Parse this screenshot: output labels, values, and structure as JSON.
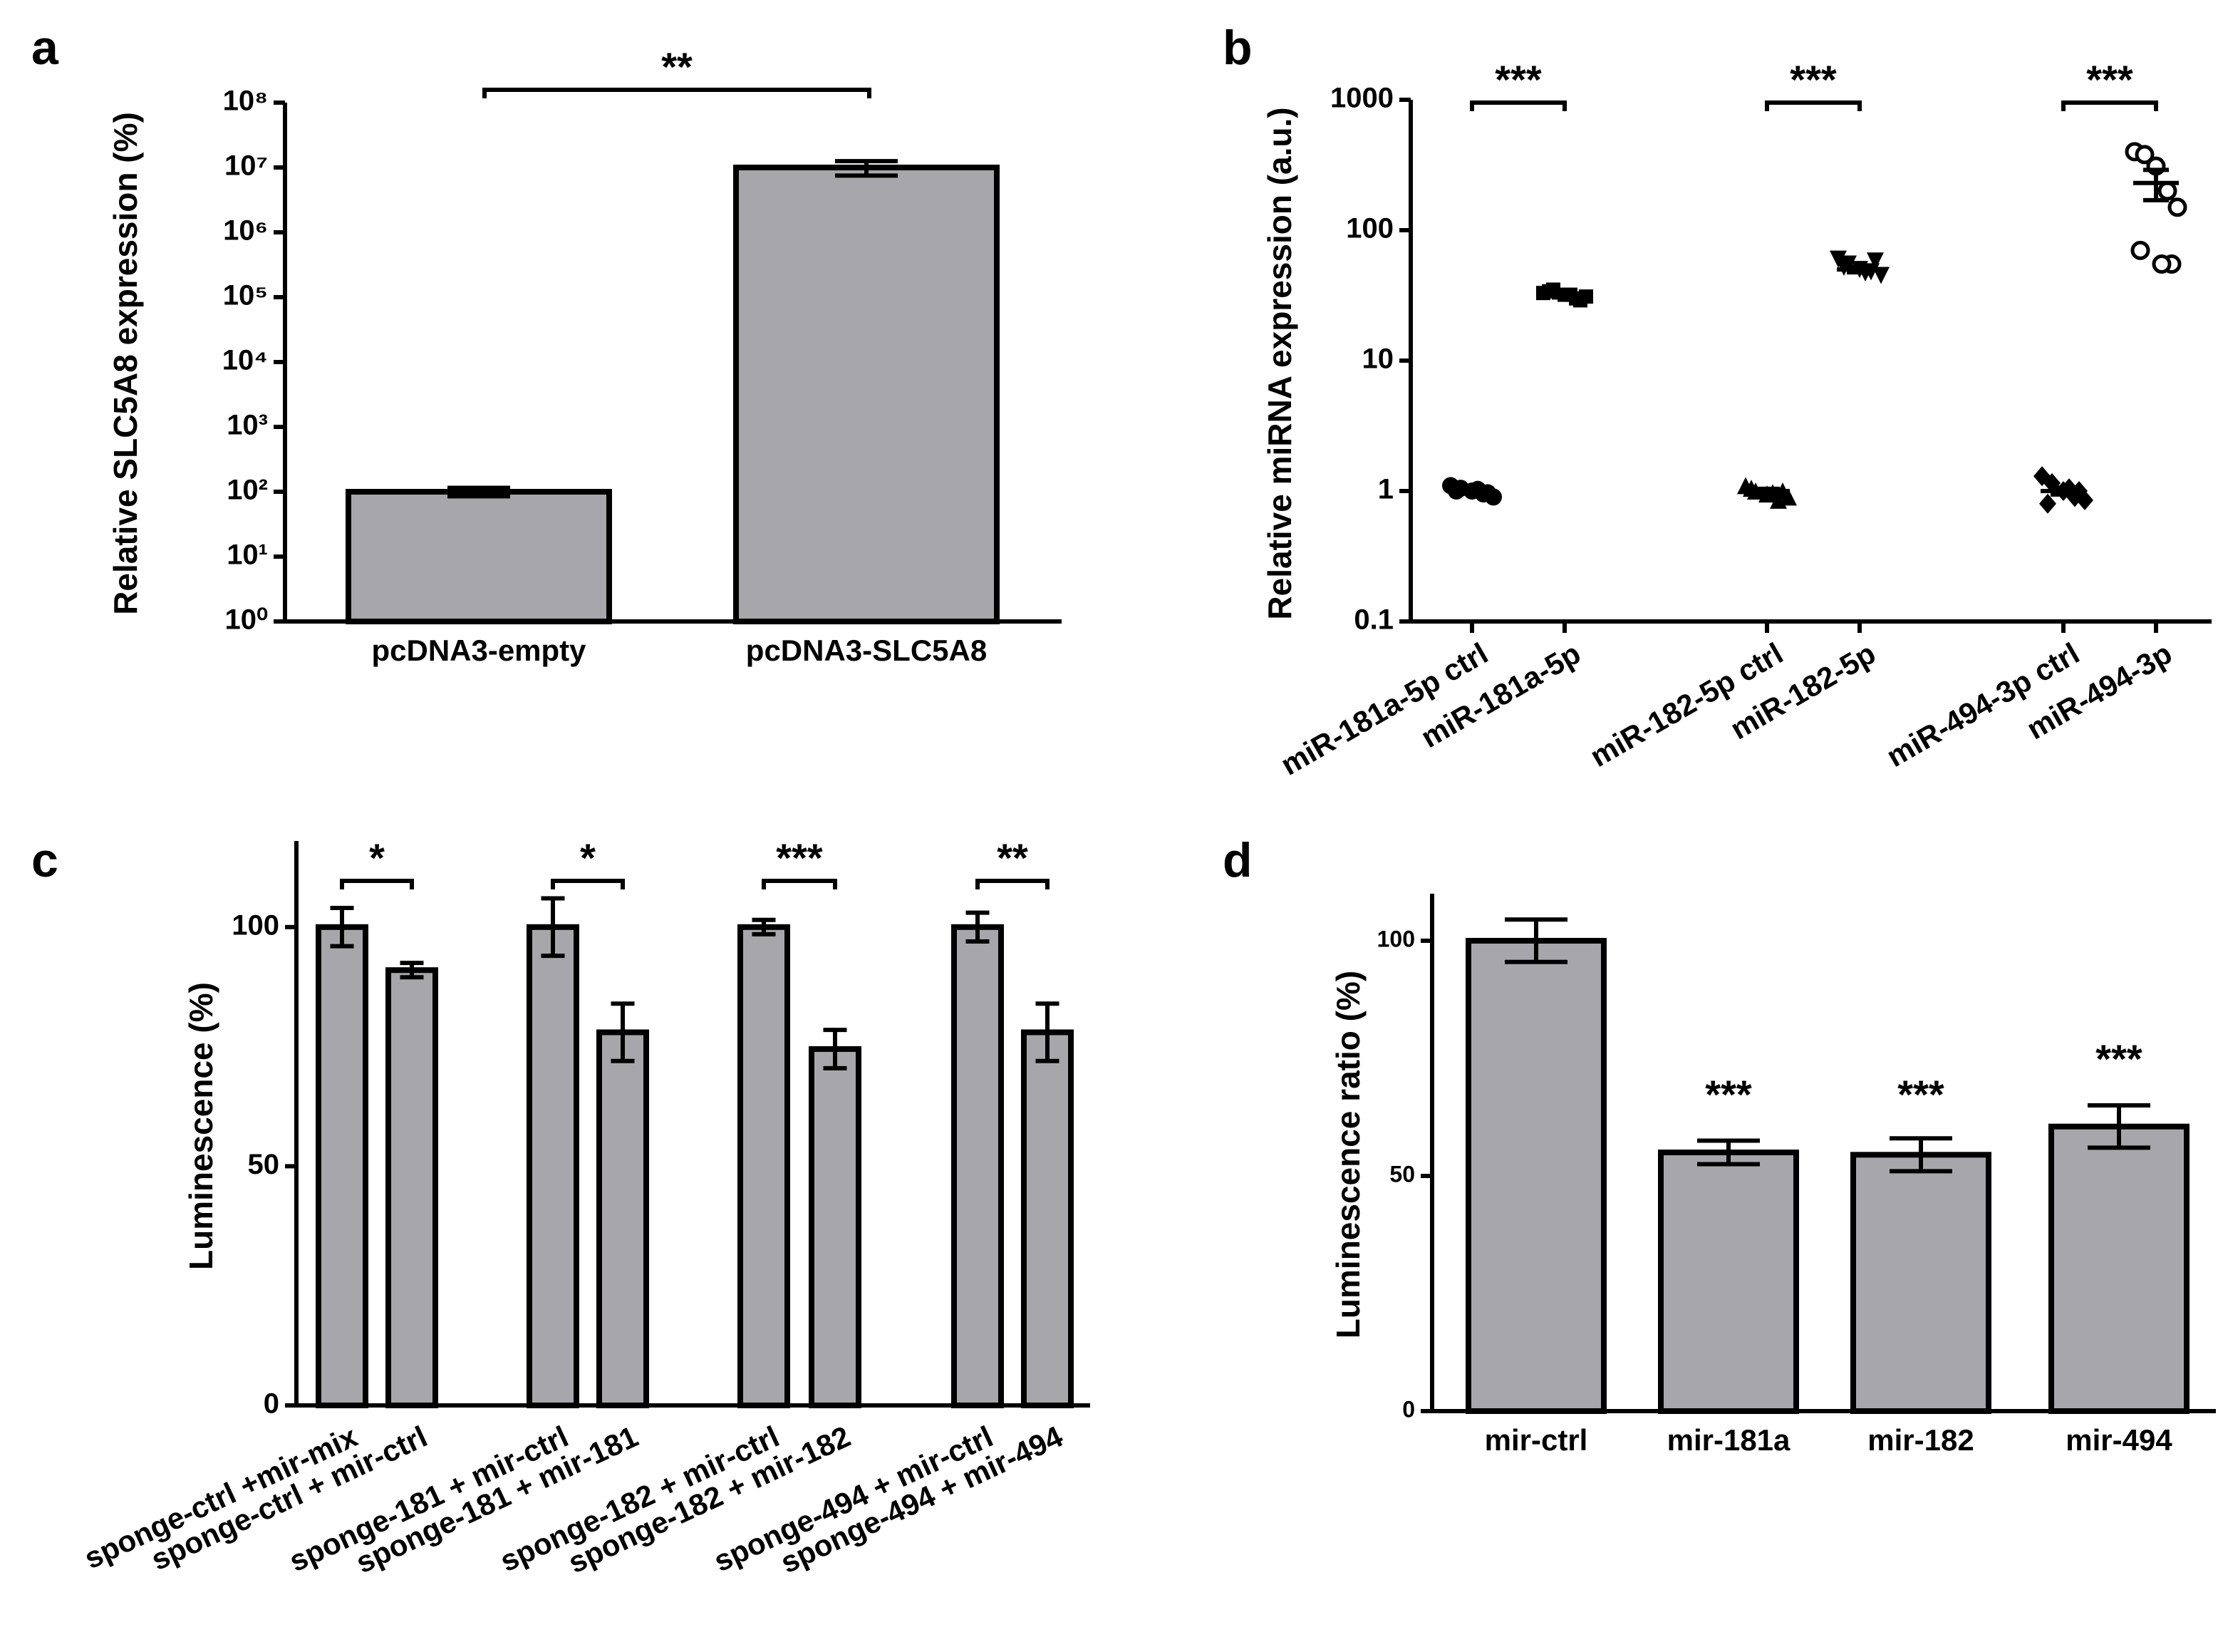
{
  "chart_data": [
    {
      "type": "bar",
      "panel_label": "a",
      "y_label": "Relative SLC5A8 expression (%)",
      "categories": [
        "pcDNA3-empty",
        "pcDNA3-SLC5A8"
      ],
      "values": [
        100,
        10000000
      ],
      "errors": [
        15,
        2500000
      ],
      "color": "#a7a7ab",
      "log_scale": true,
      "ylim": [
        1,
        100000000
      ],
      "yticks": [
        {
          "value": 1,
          "label": "10⁰"
        },
        {
          "value": 10,
          "label": "10¹"
        },
        {
          "value": 100,
          "label": "10²"
        },
        {
          "value": 1000,
          "label": "10³"
        },
        {
          "value": 10000,
          "label": "10⁴"
        },
        {
          "value": 100000,
          "label": "10⁵"
        },
        {
          "value": 1000000,
          "label": "10⁶"
        },
        {
          "value": 10000000,
          "label": "10⁷"
        },
        {
          "value": 100000000,
          "label": "10⁸"
        }
      ],
      "annotations": [
        "**"
      ]
    },
    {
      "type": "dot",
      "panel_label": "b",
      "y_label": "Relative miRNA expression (a.u.)",
      "log_scale": true,
      "ylim": [
        0.1,
        1000
      ],
      "yticks": [
        0.1,
        1,
        10,
        100,
        1000
      ],
      "groups": [
        {
          "name": "miR-181a-5p ctrl",
          "marker": "circle",
          "values": [
            1.1,
            1.05,
            1.0,
            0.95,
            0.9,
            1.0,
            0.97,
            1.03
          ],
          "mean": 1.0,
          "error": 0.03
        },
        {
          "name": "miR-181a-5p",
          "marker": "square",
          "values": [
            33,
            35,
            32,
            30,
            31,
            34,
            29,
            32
          ],
          "mean": 32,
          "error": 1.5
        },
        {
          "name": "miR-182-5p ctrl",
          "marker": "triangle-up",
          "values": [
            1.1,
            1.0,
            0.95,
            0.85,
            0.9,
            1.05,
            1.0,
            0.97
          ],
          "mean": 1.0,
          "error": 0.04
        },
        {
          "name": "miR-182-5p",
          "marker": "triangle-down",
          "values": [
            60,
            55,
            50,
            48,
            45,
            52,
            58,
            47
          ],
          "mean": 50,
          "error": 2.5
        },
        {
          "name": "miR-494-3p ctrl",
          "marker": "diamond",
          "values": [
            1.3,
            1.15,
            1.0,
            0.9,
            0.85,
            0.8,
            1.0,
            1.05
          ],
          "mean": 1.0,
          "error": 0.06
        },
        {
          "name": "miR-494-3p",
          "marker": "open-circle",
          "values": [
            400,
            380,
            310,
            200,
            150,
            70,
            55,
            55
          ],
          "mean": 230,
          "error": 60
        }
      ],
      "annotations": [
        "***",
        "***",
        "***"
      ]
    },
    {
      "type": "bar",
      "panel_label": "c",
      "y_label": "Luminescence (%)",
      "categories": [
        "sponge-ctrl +mir-mix",
        "sponge-ctrl + mir-ctrl",
        "sponge-181 + mir-ctrl",
        "sponge-181 + mir-181",
        "sponge-182 + mir-ctrl",
        "sponge-182 + mir-182",
        "sponge-494 + mir-ctrl",
        "sponge-494 + mir-494"
      ],
      "values": [
        100,
        91,
        100,
        78,
        100,
        74.5,
        100,
        78
      ],
      "errors": [
        4,
        1.5,
        6,
        6,
        1.5,
        4,
        3,
        6
      ],
      "color": "#a7a7ab",
      "ylim": [
        0,
        118
      ],
      "yticks": [
        0,
        50,
        100
      ],
      "annotations": [
        "*",
        "*",
        "***",
        "**"
      ]
    },
    {
      "type": "bar",
      "panel_label": "d",
      "y_label": "Luminescence ratio (%)",
      "categories": [
        "mir-ctrl",
        "mir-181a",
        "mir-182",
        "mir-494"
      ],
      "values": [
        100,
        55,
        54.5,
        60.5
      ],
      "errors": [
        4.5,
        2.5,
        3.5,
        4.5
      ],
      "color": "#a7a7ab",
      "ylim": [
        0,
        110
      ],
      "yticks": [
        0,
        50,
        100
      ],
      "annotations": [
        "***",
        "***",
        "***"
      ]
    }
  ]
}
